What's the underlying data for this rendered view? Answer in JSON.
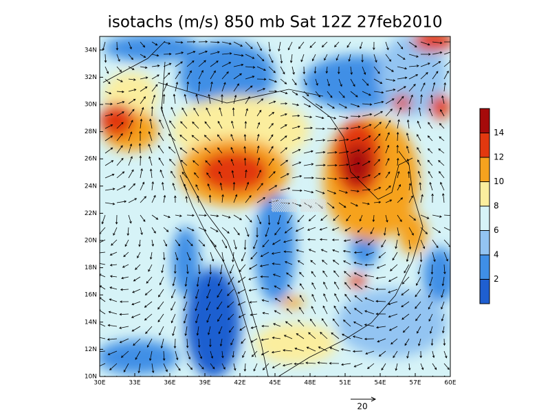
{
  "title": "isotachs (m/s) 850 mb Sat 12Z 27feb2010",
  "map": {
    "lonlim": [
      30,
      60
    ],
    "latlim": [
      10,
      35
    ],
    "lon_ticks": [
      {
        "value": 30,
        "label": "30E"
      },
      {
        "value": 33,
        "label": "33E"
      },
      {
        "value": 36,
        "label": "36E"
      },
      {
        "value": 39,
        "label": "39E"
      },
      {
        "value": 42,
        "label": "42E"
      },
      {
        "value": 45,
        "label": "45E"
      },
      {
        "value": 48,
        "label": "48E"
      },
      {
        "value": 51,
        "label": "51E"
      },
      {
        "value": 54,
        "label": "54E"
      },
      {
        "value": 57,
        "label": "57E"
      },
      {
        "value": 60,
        "label": "60E"
      }
    ],
    "lat_ticks": [
      {
        "value": 10,
        "label": "10N"
      },
      {
        "value": 12,
        "label": "12N"
      },
      {
        "value": 14,
        "label": "14N"
      },
      {
        "value": 16,
        "label": "16N"
      },
      {
        "value": 18,
        "label": "18N"
      },
      {
        "value": 20,
        "label": "20N"
      },
      {
        "value": 22,
        "label": "22N"
      },
      {
        "value": 24,
        "label": "24N"
      },
      {
        "value": 26,
        "label": "26N"
      },
      {
        "value": 28,
        "label": "28N"
      },
      {
        "value": 30,
        "label": "30N"
      },
      {
        "value": 32,
        "label": "32N"
      },
      {
        "value": 34,
        "label": "34N"
      }
    ]
  },
  "colorbar": {
    "levels": [
      2,
      4,
      6,
      8,
      10,
      12,
      14
    ],
    "colors": [
      "#1f5fd0",
      "#3f8fe6",
      "#93c4f2",
      "#d6f3f7",
      "#fbee9e",
      "#f6a21e",
      "#e2380f",
      "#a50a0a"
    ]
  },
  "reference_vector": {
    "label": "20"
  }
}
